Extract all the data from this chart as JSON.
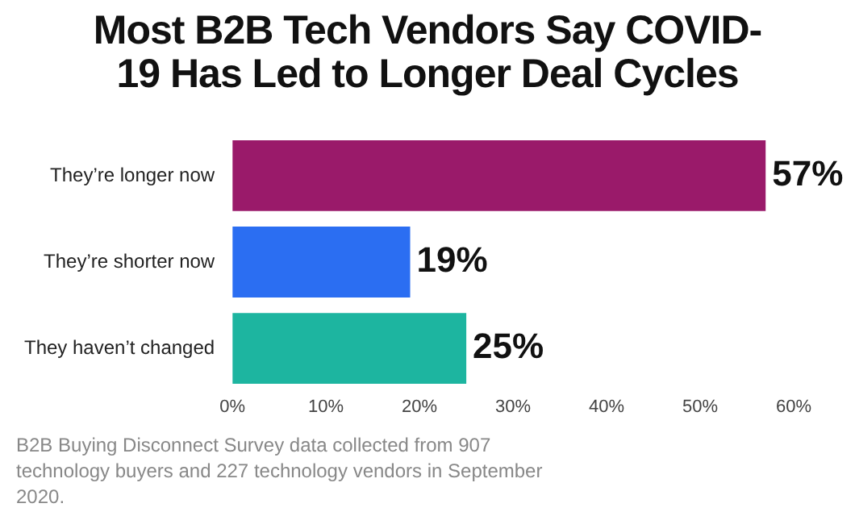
{
  "chart_data": {
    "type": "bar",
    "orientation": "horizontal",
    "title": "Most B2B Tech Vendors Say COVID-19 Has Led to Longer Deal Cycles",
    "categories": [
      "They’re longer now",
      "They’re shorter now",
      "They haven’t changed"
    ],
    "values": [
      57,
      19,
      25
    ],
    "colors": [
      "#9a1a6a",
      "#2b6ef2",
      "#1db5a0"
    ],
    "value_labels": [
      "57%",
      "19%",
      "25%"
    ],
    "xlim": [
      0,
      60
    ],
    "xticks": [
      {
        "value": 0,
        "label": "0%"
      },
      {
        "value": 10,
        "label": "10%"
      },
      {
        "value": 20,
        "label": "20%"
      },
      {
        "value": 30,
        "label": "30%"
      },
      {
        "value": 40,
        "label": "40%"
      },
      {
        "value": 50,
        "label": "50%"
      },
      {
        "value": 60,
        "label": "60%"
      }
    ],
    "grid": false,
    "legend": false,
    "annotations": [
      "B2B Buying Disconnect Survey data collected from 907 technology buyers and 227 technology vendors in September 2020."
    ]
  }
}
